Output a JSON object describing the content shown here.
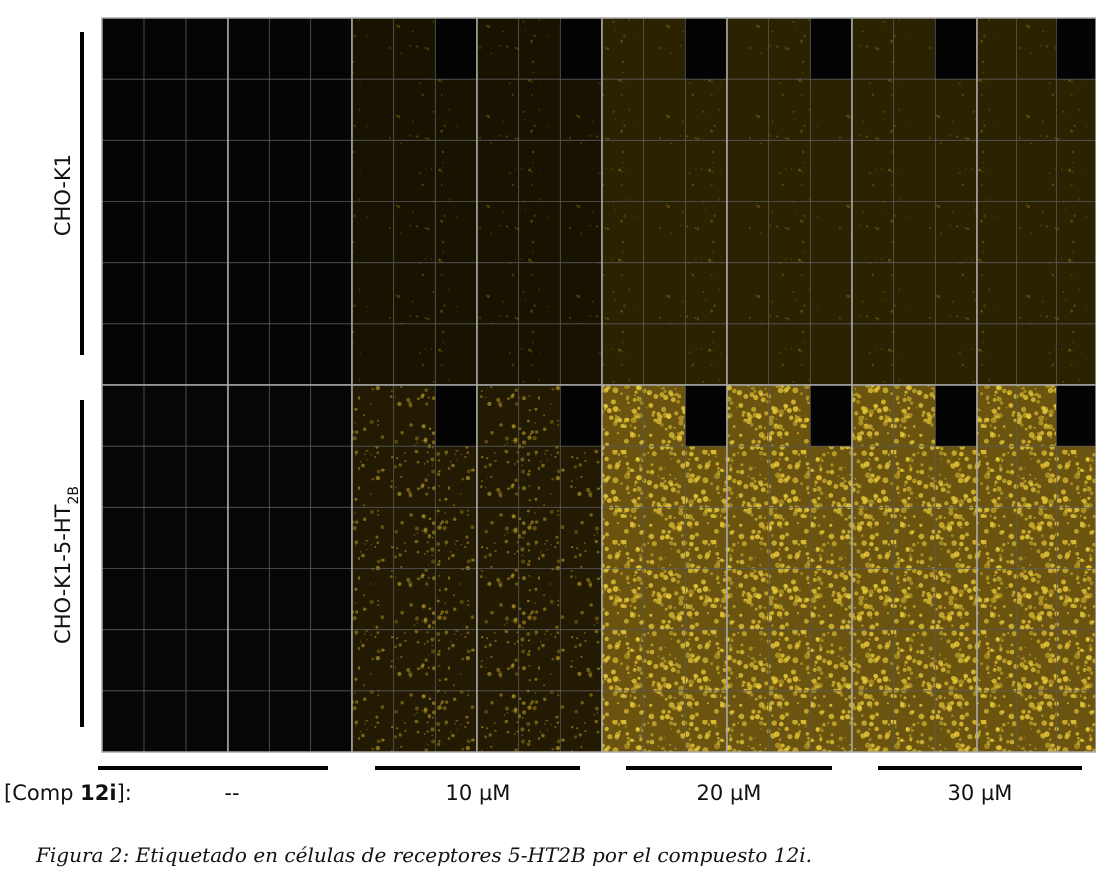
{
  "figure": {
    "row_labels": [
      {
        "text": "CHO-K1"
      },
      {
        "text": "CHO-K1-5-HT",
        "subscript": "2B"
      }
    ],
    "concentration_label": {
      "prefix": "[Comp ",
      "bold": "12i",
      "suffix": "]:"
    },
    "concentrations": [
      "--",
      "10 µM",
      "20 µM",
      "30 µM"
    ],
    "caption": "Figura 2: Etiquetado en células de receptores 5-HT2B por el compuesto 12i."
  }
}
